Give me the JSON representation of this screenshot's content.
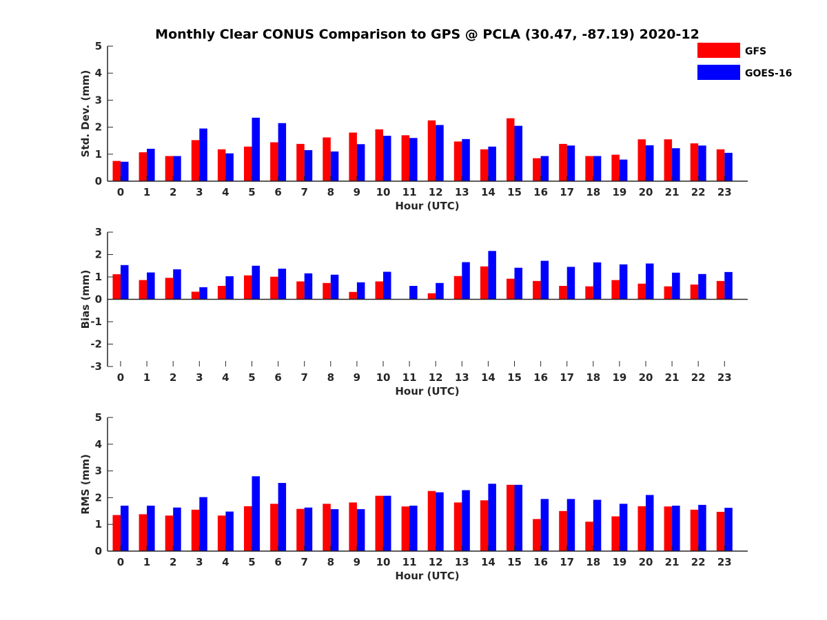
{
  "figure": {
    "title": "Monthly Clear CONUS Comparison to GPS @ PCLA (30.47, -87.19) 2020-12"
  },
  "legend": {
    "items": [
      {
        "label": "GFS",
        "color": "#ff0000"
      },
      {
        "label": "GOES-16",
        "color": "#0000ff"
      }
    ]
  },
  "chart_data": [
    {
      "type": "bar",
      "ylabel": "Std. Dev. (mm)",
      "xlabel": "Hour (UTC)",
      "ylim": [
        0,
        5
      ],
      "yticks": [
        0,
        1,
        2,
        3,
        4,
        5
      ],
      "categories": [
        "0",
        "1",
        "2",
        "3",
        "4",
        "5",
        "6",
        "7",
        "8",
        "9",
        "10",
        "11",
        "12",
        "13",
        "14",
        "15",
        "16",
        "17",
        "18",
        "19",
        "20",
        "21",
        "22",
        "23"
      ],
      "series": [
        {
          "name": "GFS",
          "color": "#ff0000",
          "values": [
            0.75,
            1.07,
            0.93,
            1.52,
            1.18,
            1.28,
            1.44,
            1.38,
            1.62,
            1.8,
            1.92,
            1.7,
            2.25,
            1.47,
            1.18,
            2.33,
            0.85,
            1.38,
            0.93,
            0.98,
            1.55,
            1.55,
            1.4,
            1.18
          ]
        },
        {
          "name": "GOES-16",
          "color": "#0000ff",
          "values": [
            0.72,
            1.2,
            0.93,
            1.95,
            1.03,
            2.35,
            2.15,
            1.15,
            1.1,
            1.37,
            1.68,
            1.6,
            2.08,
            1.56,
            1.28,
            2.05,
            0.93,
            1.32,
            0.93,
            0.8,
            1.33,
            1.22,
            1.32,
            1.05
          ]
        }
      ]
    },
    {
      "type": "bar",
      "ylabel": "Bias (mm)",
      "xlabel": "Hour (UTC)",
      "ylim": [
        -3,
        3
      ],
      "yticks": [
        -3,
        -2,
        -1,
        0,
        1,
        2,
        3
      ],
      "categories": [
        "0",
        "1",
        "2",
        "3",
        "4",
        "5",
        "6",
        "7",
        "8",
        "9",
        "10",
        "11",
        "12",
        "13",
        "14",
        "15",
        "16",
        "17",
        "18",
        "19",
        "20",
        "21",
        "22",
        "23"
      ],
      "series": [
        {
          "name": "GFS",
          "color": "#ff0000",
          "values": [
            1.12,
            0.86,
            0.96,
            0.34,
            0.6,
            1.07,
            1.01,
            0.8,
            0.73,
            0.33,
            0.8,
            0.0,
            0.27,
            1.04,
            1.47,
            0.92,
            0.82,
            0.6,
            0.58,
            0.86,
            0.7,
            0.58,
            0.66,
            0.82
          ]
        },
        {
          "name": "GOES-16",
          "color": "#0000ff",
          "values": [
            1.53,
            1.2,
            1.34,
            0.54,
            1.03,
            1.5,
            1.37,
            1.16,
            1.1,
            0.76,
            1.23,
            0.6,
            0.73,
            1.66,
            2.16,
            1.41,
            1.72,
            1.45,
            1.65,
            1.56,
            1.6,
            1.19,
            1.13,
            1.22
          ]
        }
      ]
    },
    {
      "type": "bar",
      "ylabel": "RMS (mm)",
      "xlabel": "Hour (UTC)",
      "ylim": [
        0,
        5
      ],
      "yticks": [
        0,
        1,
        2,
        3,
        4,
        5
      ],
      "categories": [
        "0",
        "1",
        "2",
        "3",
        "4",
        "5",
        "6",
        "7",
        "8",
        "9",
        "10",
        "11",
        "12",
        "13",
        "14",
        "15",
        "16",
        "17",
        "18",
        "19",
        "20",
        "21",
        "22",
        "23"
      ],
      "series": [
        {
          "name": "GFS",
          "color": "#ff0000",
          "values": [
            1.35,
            1.38,
            1.33,
            1.55,
            1.33,
            1.68,
            1.77,
            1.58,
            1.77,
            1.82,
            2.07,
            1.67,
            2.25,
            1.82,
            1.9,
            2.48,
            1.2,
            1.5,
            1.1,
            1.3,
            1.68,
            1.67,
            1.55,
            1.47
          ]
        },
        {
          "name": "GOES-16",
          "color": "#0000ff",
          "values": [
            1.7,
            1.7,
            1.63,
            2.02,
            1.48,
            2.8,
            2.55,
            1.63,
            1.57,
            1.57,
            2.07,
            1.7,
            2.2,
            2.28,
            2.52,
            2.48,
            1.95,
            1.95,
            1.92,
            1.77,
            2.1,
            1.7,
            1.73,
            1.62
          ]
        }
      ]
    }
  ]
}
